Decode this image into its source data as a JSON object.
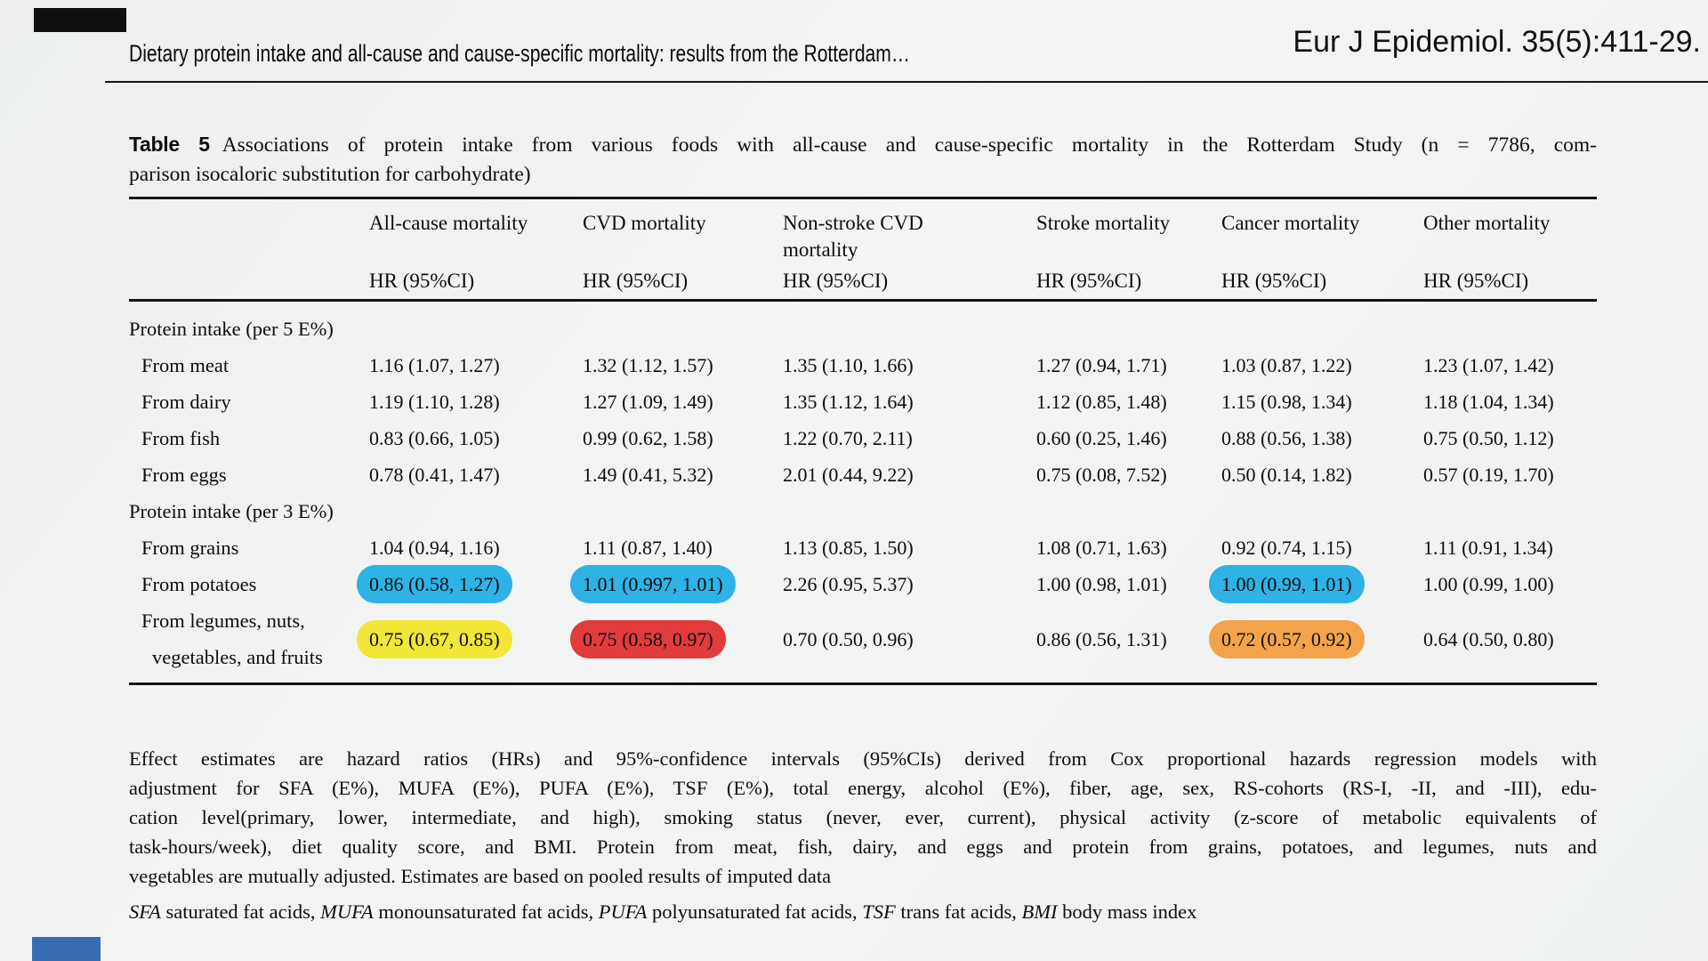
{
  "header": {
    "running_title": "Dietary protein intake and all-cause and cause-specific mortality: results from the Rotterdam…",
    "journal_ref": "Eur J Epidemiol. 35(5):411-29."
  },
  "table": {
    "label": "Table 5",
    "caption_line1": "Associations of protein intake from various foods with all-cause and cause-specific mortality in the Rotterdam Study (n = 7786, com-",
    "caption_line2": "parison isocaloric substitution for carbohydrate)",
    "column_groups": [
      "All-cause mortality",
      "CVD mortality",
      "Non-stroke CVD mortality",
      "Stroke mortality",
      "Cancer mortality",
      "Other mortality"
    ],
    "subheader": "HR (95%CI)",
    "rows": [
      {
        "type": "section",
        "label": "Protein intake (per 5 E%)"
      },
      {
        "type": "data",
        "label": "From meat",
        "cells": [
          {
            "text": "1.16 (1.07, 1.27)"
          },
          {
            "text": "1.32 (1.12, 1.57)"
          },
          {
            "text": "1.35 (1.10, 1.66)"
          },
          {
            "text": "1.27 (0.94, 1.71)"
          },
          {
            "text": "1.03 (0.87, 1.22)"
          },
          {
            "text": "1.23 (1.07, 1.42)"
          }
        ]
      },
      {
        "type": "data",
        "label": "From dairy",
        "cells": [
          {
            "text": "1.19 (1.10, 1.28)"
          },
          {
            "text": "1.27 (1.09, 1.49)"
          },
          {
            "text": "1.35 (1.12, 1.64)"
          },
          {
            "text": "1.12 (0.85, 1.48)"
          },
          {
            "text": "1.15 (0.98, 1.34)"
          },
          {
            "text": "1.18 (1.04, 1.34)"
          }
        ]
      },
      {
        "type": "data",
        "label": "From fish",
        "cells": [
          {
            "text": "0.83 (0.66, 1.05)"
          },
          {
            "text": "0.99 (0.62, 1.58)"
          },
          {
            "text": "1.22 (0.70, 2.11)"
          },
          {
            "text": "0.60 (0.25, 1.46)"
          },
          {
            "text": "0.88 (0.56, 1.38)"
          },
          {
            "text": "0.75 (0.50, 1.12)"
          }
        ]
      },
      {
        "type": "data",
        "label": "From eggs",
        "cells": [
          {
            "text": "0.78 (0.41, 1.47)"
          },
          {
            "text": "1.49 (0.41, 5.32)"
          },
          {
            "text": "2.01 (0.44, 9.22)"
          },
          {
            "text": "0.75 (0.08, 7.52)"
          },
          {
            "text": "0.50 (0.14, 1.82)"
          },
          {
            "text": "0.57 (0.19, 1.70)"
          }
        ]
      },
      {
        "type": "section",
        "label": "Protein intake (per 3 E%)"
      },
      {
        "type": "data",
        "label": "From grains",
        "cells": [
          {
            "text": "1.04 (0.94, 1.16)"
          },
          {
            "text": "1.11 (0.87, 1.40)"
          },
          {
            "text": "1.13 (0.85, 1.50)"
          },
          {
            "text": "1.08 (0.71, 1.63)"
          },
          {
            "text": "0.92 (0.74, 1.15)"
          },
          {
            "text": "1.11 (0.91, 1.34)"
          }
        ]
      },
      {
        "type": "data",
        "label": "From potatoes",
        "cells": [
          {
            "text": "0.86 (0.58, 1.27)",
            "highlight": "blue"
          },
          {
            "text": "1.01 (0.997, 1.01)",
            "highlight": "blue"
          },
          {
            "text": "2.26 (0.95, 5.37)"
          },
          {
            "text": "1.00 (0.98, 1.01)"
          },
          {
            "text": "1.00 (0.99, 1.01)",
            "highlight": "blue"
          },
          {
            "text": "1.00 (0.99, 1.00)"
          }
        ]
      },
      {
        "type": "data",
        "label": "From legumes, nuts, vegetables, and fruits",
        "cells": [
          {
            "text": "0.75 (0.67, 0.85)",
            "highlight": "yellow"
          },
          {
            "text": "0.75 (0.58, 0.97)",
            "highlight": "red"
          },
          {
            "text": "0.70 (0.50, 0.96)"
          },
          {
            "text": "0.86 (0.56, 1.31)"
          },
          {
            "text": "0.72 (0.57, 0.92)",
            "highlight": "orange"
          },
          {
            "text": "0.64 (0.50, 0.80)"
          }
        ]
      }
    ]
  },
  "footnotes": {
    "lines": [
      "Effect estimates are hazard ratios (HRs) and 95%-confidence intervals (95%CIs) derived from Cox proportional hazards regression models with",
      "adjustment for SFA (E%), MUFA (E%), PUFA (E%), TSF (E%), total energy, alcohol (E%), fiber, age, sex, RS-cohorts (RS-I, -II, and -III), edu-",
      "cation level(primary, lower, intermediate, and high), smoking status (never, ever, current), physical activity (z-score of metabolic equivalents of",
      "task-hours/week), diet quality score, and BMI. Protein from meat, fish, dairy, and eggs and protein from grains, potatoes, and legumes, nuts and",
      "vegetables are mutually adjusted. Estimates are based on pooled results of imputed data"
    ],
    "abbreviations": [
      {
        "text": "SFA",
        "italic": true
      },
      {
        "text": " saturated fat acids, "
      },
      {
        "text": "MUFA",
        "italic": true
      },
      {
        "text": " monounsaturated fat acids, "
      },
      {
        "text": "PUFA",
        "italic": true
      },
      {
        "text": " polyunsaturated fat acids, "
      },
      {
        "text": "TSF",
        "italic": true
      },
      {
        "text": " trans fat acids, "
      },
      {
        "text": "BMI",
        "italic": true
      },
      {
        "text": " body mass index"
      }
    ]
  },
  "colors": {
    "highlight_blue": "#2fb2e5",
    "highlight_yellow": "#f2e636",
    "highlight_red": "#e23b3b",
    "highlight_orange": "#f3a44a",
    "accent_bar_black": "#101010",
    "accent_bar_blue": "#3a6cb0",
    "rule_color": "#141414"
  }
}
